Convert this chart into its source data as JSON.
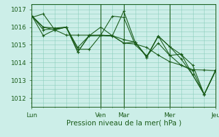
{
  "title": "",
  "xlabel": "Pression niveau de la mer( hPa )",
  "ylabel": "",
  "bg_color": "#cceee8",
  "grid_color": "#88ccbb",
  "line_color": "#1a5c1a",
  "ylim": [
    1011.7,
    1017.3
  ],
  "xlim": [
    0,
    96
  ],
  "xtick_positions": [
    0,
    36,
    48,
    72,
    96
  ],
  "xtick_labels": [
    "Lun",
    "Ven",
    "Mar",
    "Mer",
    "Jeu"
  ],
  "ytick_positions": [
    1012,
    1013,
    1014,
    1015,
    1016,
    1017
  ],
  "series": [
    [
      0,
      1016.55,
      6,
      1016.75,
      12,
      1015.85,
      18,
      1015.55,
      24,
      1015.55,
      30,
      1015.55,
      36,
      1015.55,
      42,
      1015.52,
      48,
      1015.1,
      54,
      1015.05,
      60,
      1014.85,
      66,
      1014.42,
      72,
      1014.05,
      78,
      1013.85,
      84,
      1013.6,
      90,
      1013.58,
      96,
      1013.55
    ],
    [
      0,
      1016.62,
      6,
      1016.0,
      12,
      1015.95,
      18,
      1016.0,
      24,
      1014.75,
      30,
      1014.75,
      36,
      1015.55,
      42,
      1016.62,
      48,
      1016.55,
      54,
      1015.0,
      60,
      1014.38,
      66,
      1015.1,
      72,
      1014.4,
      78,
      1014.48,
      84,
      1013.3,
      90,
      1012.2,
      96,
      1013.6
    ],
    [
      0,
      1016.65,
      6,
      1015.85,
      12,
      1015.9,
      18,
      1016.0,
      24,
      1014.85,
      30,
      1015.52,
      36,
      1015.52,
      42,
      1015.5,
      48,
      1016.9,
      54,
      1015.15,
      60,
      1014.3,
      66,
      1015.5,
      72,
      1014.9,
      78,
      1014.2,
      84,
      1013.3,
      90,
      1012.2,
      96,
      1013.55
    ],
    [
      0,
      1016.65,
      6,
      1015.52,
      12,
      1015.85,
      18,
      1016.0,
      24,
      1014.6,
      30,
      1015.52,
      36,
      1016.0,
      42,
      1015.52,
      48,
      1015.3,
      54,
      1015.15,
      60,
      1014.3,
      66,
      1015.5,
      72,
      1014.9,
      78,
      1014.45,
      84,
      1013.85,
      90,
      1012.2,
      96,
      1013.55
    ],
    [
      0,
      1016.65,
      6,
      1016.0,
      12,
      1015.85,
      18,
      1016.0,
      24,
      1014.6,
      30,
      1015.52,
      36,
      1015.55,
      42,
      1015.52,
      48,
      1015.1,
      54,
      1015.15,
      60,
      1014.35,
      66,
      1015.5,
      72,
      1014.42,
      78,
      1013.85,
      84,
      1013.55,
      90,
      1012.2,
      96,
      1013.55
    ]
  ]
}
